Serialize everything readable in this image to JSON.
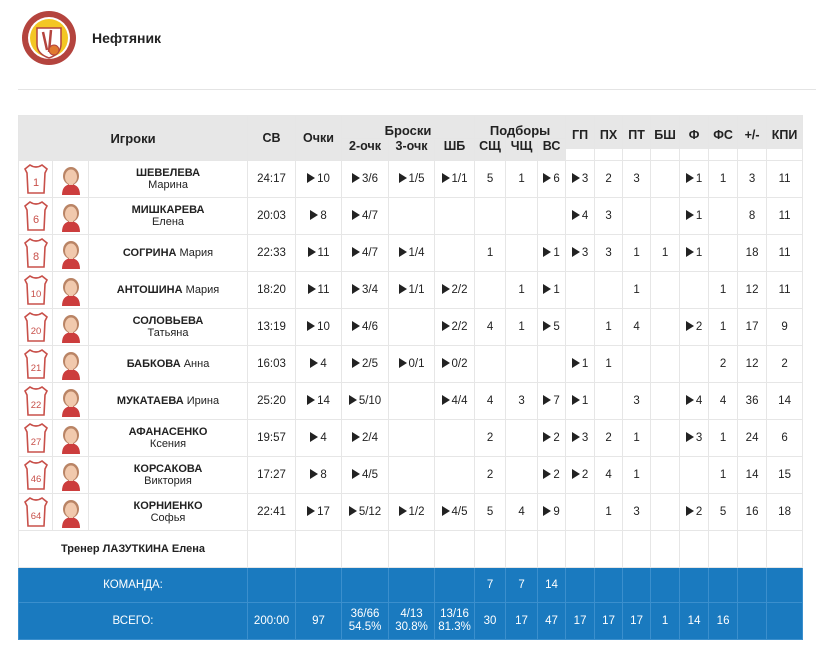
{
  "team": {
    "name": "Нефтяник",
    "logo": "neftyanik-logo"
  },
  "colors": {
    "header_bg": "#e7e7e7",
    "total_bg": "#1a7abf",
    "jersey": "#c8504a",
    "accent": "#222222"
  },
  "table": {
    "headers": {
      "players": "Игроки",
      "sv": "СВ",
      "points": "Очки",
      "shots": "Броски",
      "shots_sub": [
        "2-очк",
        "3-очк",
        "ШБ"
      ],
      "rebounds": "Подборы",
      "rebounds_sub": [
        "СЩ",
        "ЧЩ",
        "ВС"
      ],
      "rest": [
        "ГП",
        "ПХ",
        "ПТ",
        "БШ",
        "Ф",
        "ФС",
        "+/-",
        "КПИ"
      ]
    },
    "players": [
      {
        "number": "1",
        "last": "ШЕВЕЛЕВА",
        "first": "Марина",
        "two_line": true,
        "sv": "24:17",
        "pts": "10",
        "p2": "3/6",
        "p3": "1/5",
        "ft": "1/1",
        "oreb": "5",
        "dreb": "1",
        "reb": "6",
        "ast": "3",
        "to": "2",
        "stl": "3",
        "blk": "",
        "pf": "1",
        "fd": "1",
        "pm": "3",
        "eff": "11",
        "arrows": [
          "pts",
          "p2",
          "p3",
          "ft",
          "reb",
          "ast",
          "pf"
        ]
      },
      {
        "number": "6",
        "last": "МИШКАРЕВА",
        "first": "Елена",
        "two_line": true,
        "sv": "20:03",
        "pts": "8",
        "p2": "4/7",
        "p3": "",
        "ft": "",
        "oreb": "",
        "dreb": "",
        "reb": "",
        "ast": "4",
        "to": "3",
        "stl": "",
        "blk": "",
        "pf": "1",
        "fd": "",
        "pm": "8",
        "eff": "11",
        "arrows": [
          "pts",
          "p2",
          "ast",
          "pf"
        ]
      },
      {
        "number": "8",
        "last": "СОГРИНА",
        "first": "Мария",
        "two_line": false,
        "sv": "22:33",
        "pts": "11",
        "p2": "4/7",
        "p3": "1/4",
        "ft": "",
        "oreb": "1",
        "dreb": "",
        "reb": "1",
        "ast": "3",
        "to": "3",
        "stl": "1",
        "blk": "1",
        "pf": "1",
        "fd": "",
        "pm": "18",
        "eff": "11",
        "arrows": [
          "pts",
          "p2",
          "p3",
          "reb",
          "ast",
          "pf"
        ]
      },
      {
        "number": "10",
        "last": "АНТОШИНА",
        "first": "Мария",
        "two_line": false,
        "sv": "18:20",
        "pts": "11",
        "p2": "3/4",
        "p3": "1/1",
        "ft": "2/2",
        "oreb": "",
        "dreb": "1",
        "reb": "1",
        "ast": "",
        "to": "",
        "stl": "1",
        "blk": "",
        "pf": "",
        "fd": "1",
        "pm": "12",
        "eff": "11",
        "arrows": [
          "pts",
          "p2",
          "p3",
          "ft",
          "reb"
        ]
      },
      {
        "number": "20",
        "last": "СОЛОВЬЕВА",
        "first": "Татьяна",
        "two_line": true,
        "sv": "13:19",
        "pts": "10",
        "p2": "4/6",
        "p3": "",
        "ft": "2/2",
        "oreb": "4",
        "dreb": "1",
        "reb": "5",
        "ast": "",
        "to": "1",
        "stl": "4",
        "blk": "",
        "pf": "2",
        "fd": "1",
        "pm": "17",
        "eff": "9",
        "arrows": [
          "pts",
          "p2",
          "ft",
          "reb",
          "pf"
        ]
      },
      {
        "number": "21",
        "last": "БАБКОВА",
        "first": "Анна",
        "two_line": false,
        "sv": "16:03",
        "pts": "4",
        "p2": "2/5",
        "p3": "0/1",
        "ft": "0/2",
        "oreb": "",
        "dreb": "",
        "reb": "",
        "ast": "1",
        "to": "1",
        "stl": "",
        "blk": "",
        "pf": "",
        "fd": "2",
        "pm": "12",
        "eff": "2",
        "arrows": [
          "pts",
          "p2",
          "p3",
          "ft",
          "ast"
        ]
      },
      {
        "number": "22",
        "last": "МУКАТАЕВА",
        "first": "Ирина",
        "two_line": false,
        "sv": "25:20",
        "pts": "14",
        "p2": "5/10",
        "p3": "",
        "ft": "4/4",
        "oreb": "4",
        "dreb": "3",
        "reb": "7",
        "ast": "1",
        "to": "",
        "stl": "3",
        "blk": "",
        "pf": "4",
        "fd": "4",
        "pm": "36",
        "eff": "14",
        "arrows": [
          "pts",
          "p2",
          "ft",
          "reb",
          "ast",
          "pf"
        ]
      },
      {
        "number": "27",
        "last": "АФАНАСЕНКО",
        "first": "Ксения",
        "two_line": true,
        "sv": "19:57",
        "pts": "4",
        "p2": "2/4",
        "p3": "",
        "ft": "",
        "oreb": "2",
        "dreb": "",
        "reb": "2",
        "ast": "3",
        "to": "2",
        "stl": "1",
        "blk": "",
        "pf": "3",
        "fd": "1",
        "pm": "24",
        "eff": "6",
        "arrows": [
          "pts",
          "p2",
          "reb",
          "ast",
          "pf"
        ]
      },
      {
        "number": "46",
        "last": "КОРСАКОВА",
        "first": "Виктория",
        "two_line": true,
        "sv": "17:27",
        "pts": "8",
        "p2": "4/5",
        "p3": "",
        "ft": "",
        "oreb": "2",
        "dreb": "",
        "reb": "2",
        "ast": "2",
        "to": "4",
        "stl": "1",
        "blk": "",
        "pf": "",
        "fd": "1",
        "pm": "14",
        "eff": "15",
        "arrows": [
          "pts",
          "p2",
          "reb",
          "ast"
        ]
      },
      {
        "number": "64",
        "last": "КОРНИЕНКО",
        "first": "Софья",
        "two_line": true,
        "sv": "22:41",
        "pts": "17",
        "p2": "5/12",
        "p3": "1/2",
        "ft": "4/5",
        "oreb": "5",
        "dreb": "4",
        "reb": "9",
        "ast": "",
        "to": "1",
        "stl": "3",
        "blk": "",
        "pf": "2",
        "fd": "5",
        "pm": "16",
        "eff": "18",
        "arrows": [
          "pts",
          "p2",
          "p3",
          "ft",
          "reb",
          "pf"
        ]
      }
    ],
    "coach": "Тренер ЛАЗУТКИНА Елена",
    "team_row": {
      "label": "КОМАНДА:",
      "oreb": "7",
      "dreb": "7",
      "reb": "14"
    },
    "total_row": {
      "label": "ВСЕГО:",
      "sv": "200:00",
      "pts": "97",
      "p2": "36/66",
      "p2_pct": "54.5%",
      "p3": "4/13",
      "p3_pct": "30.8%",
      "ft": "13/16",
      "ft_pct": "81.3%",
      "oreb": "30",
      "dreb": "17",
      "reb": "47",
      "ast": "17",
      "to": "17",
      "stl": "17",
      "blk": "1",
      "pf": "14",
      "fd": "16",
      "pm": "",
      "eff": ""
    }
  }
}
